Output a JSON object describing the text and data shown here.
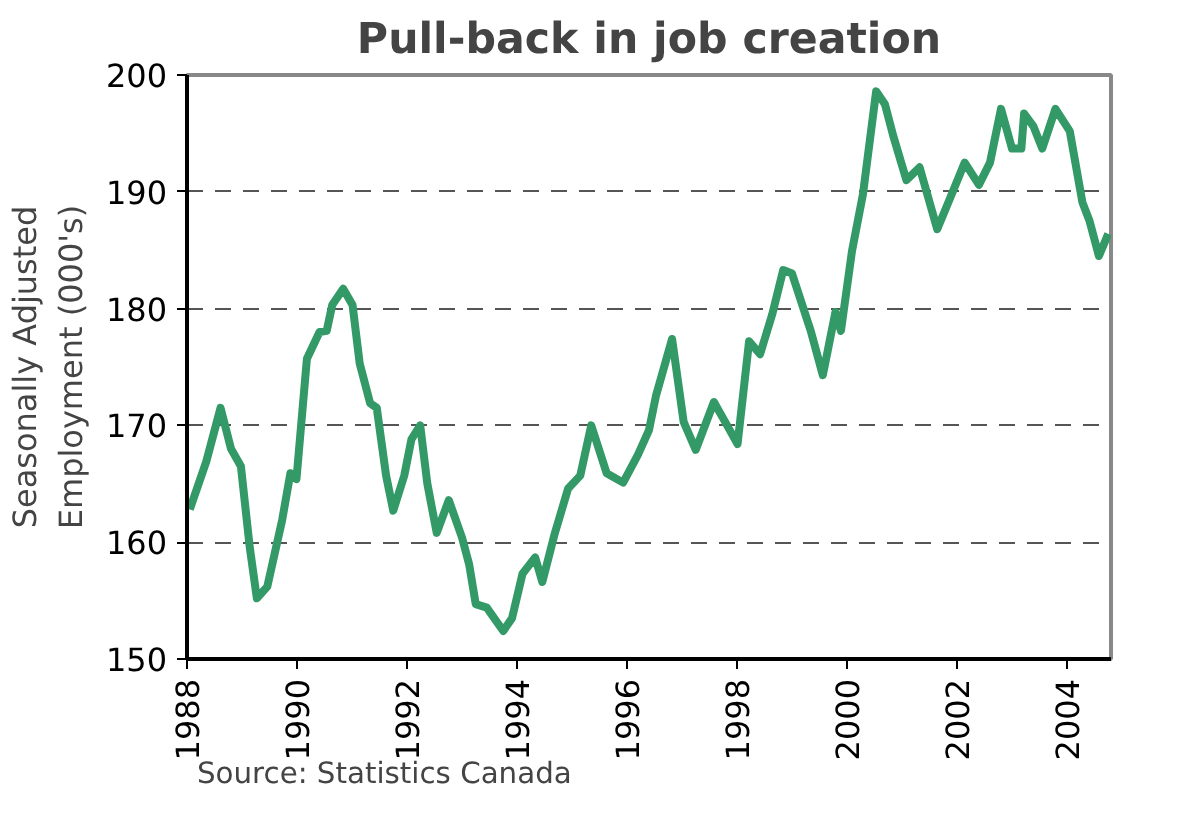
{
  "chart_data": {
    "type": "line",
    "title": "Pull-back in job creation",
    "ylabel": "Seasonally Adjusted\nEmployment (000's)",
    "annotations": [
      "Source: Statistics Canada"
    ],
    "xlim": [
      1988,
      2004.8
    ],
    "xticks": [
      1988,
      1990,
      1992,
      1994,
      1996,
      1998,
      2000,
      2002,
      2004
    ],
    "ylim": [
      150,
      200
    ],
    "yticks": [
      150,
      160,
      170,
      180,
      190,
      200
    ],
    "grid": "y",
    "line_style": "solid",
    "marker": "none",
    "series": [
      {
        "color": "#339966",
        "x": [
          1988.05,
          1988.35,
          1988.61,
          1988.8,
          1988.98,
          1989.14,
          1989.27,
          1989.46,
          1989.73,
          1989.88,
          1989.99,
          1990.18,
          1990.41,
          1990.54,
          1990.64,
          1990.84,
          1991.01,
          1991.14,
          1991.33,
          1991.45,
          1991.62,
          1991.75,
          1991.95,
          1992.08,
          1992.24,
          1992.37,
          1992.54,
          1992.76,
          1993.0,
          1993.13,
          1993.25,
          1993.45,
          1993.75,
          1993.91,
          1994.1,
          1994.33,
          1994.46,
          1994.69,
          1994.93,
          1995.15,
          1995.35,
          1995.63,
          1995.93,
          1996.2,
          1996.4,
          1996.53,
          1996.82,
          1997.03,
          1997.25,
          1997.58,
          1997.82,
          1998.01,
          1998.22,
          1998.42,
          1998.64,
          1998.84,
          1999.0,
          1999.34,
          1999.56,
          1999.79,
          1999.89,
          2000.09,
          2000.29,
          2000.53,
          2000.69,
          2000.84,
          2001.08,
          2001.32,
          2001.64,
          2001.87,
          2002.14,
          2002.4,
          2002.6,
          2002.8,
          2003.0,
          2003.17,
          2003.22,
          2003.39,
          2003.55,
          2003.79,
          2004.05,
          2004.28,
          2004.41,
          2004.58,
          2004.75
        ],
        "values": [
          162.8,
          166.9,
          171.5,
          168,
          166.5,
          159.6,
          155.2,
          156.2,
          161.9,
          165.9,
          165.4,
          175.7,
          178,
          178.1,
          180.3,
          181.7,
          180.3,
          175.3,
          171.9,
          171.5,
          165.7,
          162.7,
          165.7,
          168.8,
          170,
          165,
          160.8,
          163.6,
          160.4,
          158.1,
          154.7,
          154.4,
          152.4,
          153.5,
          157.3,
          158.7,
          156.6,
          160.8,
          164.6,
          165.7,
          170,
          165.9,
          165.1,
          167.5,
          169.6,
          172.6,
          177.4,
          170.3,
          167.9,
          172,
          170,
          168.4,
          177.2,
          176.1,
          179.5,
          183.3,
          183,
          178.1,
          174.3,
          179.7,
          178.1,
          184.9,
          189.8,
          198.6,
          197.5,
          194.8,
          191,
          192.1,
          186.8,
          189.4,
          192.5,
          190.6,
          192.5,
          197.1,
          193.7,
          193.7,
          196.7,
          195.6,
          193.7,
          197.1,
          195.2,
          189.1,
          187.5,
          184.5,
          186.4
        ]
      }
    ]
  }
}
